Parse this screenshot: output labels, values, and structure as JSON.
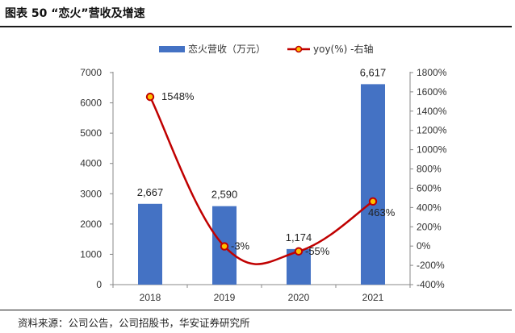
{
  "figure": {
    "title": "图表 50 “恋火”营收及增速",
    "source": "资料来源：公司公告，公司招股书，华安证券研究所"
  },
  "chart_data": {
    "type": "bar+line",
    "categories": [
      "2018",
      "2019",
      "2020",
      "2021"
    ],
    "series": [
      {
        "name": "恋火营收（万元）",
        "kind": "bar",
        "axis": "left",
        "values": [
          2667,
          2590,
          1174,
          6617
        ],
        "labels": [
          "2,667",
          "2,590",
          "1,174",
          "6,617"
        ]
      },
      {
        "name": "yoy(%) -右轴",
        "kind": "line",
        "axis": "right",
        "values": [
          1548,
          -3,
          -55,
          463
        ],
        "labels": [
          "1548%",
          "-3%",
          "-55%",
          "463%"
        ]
      }
    ],
    "left_axis": {
      "min": 0,
      "max": 7000,
      "step": 1000,
      "ticks": [
        "0",
        "1000",
        "2000",
        "3000",
        "4000",
        "5000",
        "6000",
        "7000"
      ]
    },
    "right_axis": {
      "min": -400,
      "max": 1800,
      "step": 200,
      "ticks": [
        "-400%",
        "-200%",
        "0%",
        "200%",
        "400%",
        "600%",
        "800%",
        "1000%",
        "1200%",
        "1400%",
        "1600%",
        "1800%"
      ]
    },
    "legend_position": "top-center",
    "grid": false,
    "colors": {
      "bar": "#4472C4",
      "line": "#C00000",
      "marker_fill": "#FFC000"
    }
  }
}
